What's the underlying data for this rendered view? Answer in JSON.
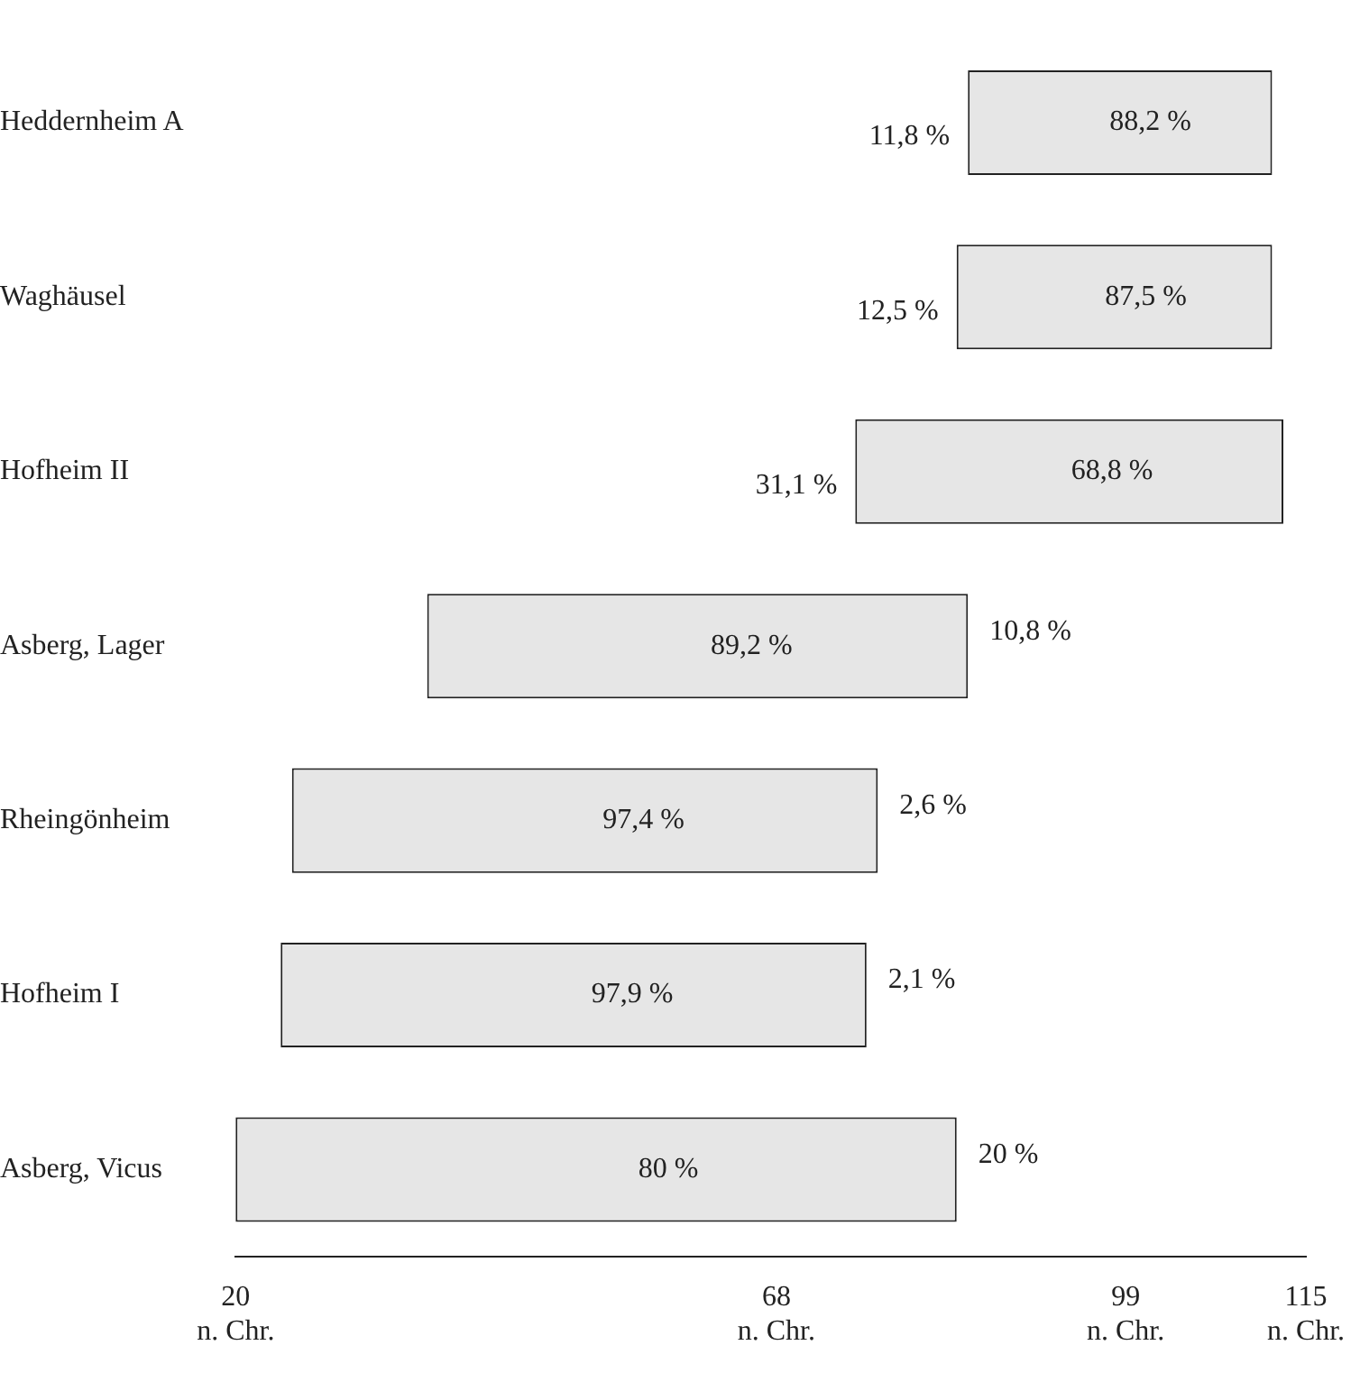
{
  "chart_data": {
    "type": "bar",
    "orientation": "horizontal",
    "categories": [
      "Heddernheim A",
      "Waghäusel",
      "Hofheim II",
      "Asberg, Lager",
      "Rheingönheim",
      "Hofheim I",
      "Asberg, Vicus"
    ],
    "base": [
      85,
      84,
      75,
      37,
      25,
      24,
      20
    ],
    "values": [
      27,
      28,
      38,
      48,
      52,
      52,
      64
    ],
    "color": "#e6e6e6",
    "xlim": [
      20,
      115
    ],
    "xticks": [
      {
        "value": 20,
        "label": "20\nn. Chr."
      },
      {
        "value": 68,
        "label": "68\nn. Chr."
      },
      {
        "value": 99,
        "label": "99\nn. Chr."
      },
      {
        "value": 115,
        "label": "115\nn. Chr."
      }
    ],
    "grid": false,
    "legend": false,
    "annotations": [
      "88,2 %",
      "11,8 %",
      "87,5 %",
      "12,5 %",
      "68,8 %",
      "31,1 %",
      "89,2 %",
      "10,8 %",
      "97,4 %",
      "2,6 %",
      "97,9 %",
      "2,1 %",
      "80 %",
      "20 %"
    ]
  }
}
